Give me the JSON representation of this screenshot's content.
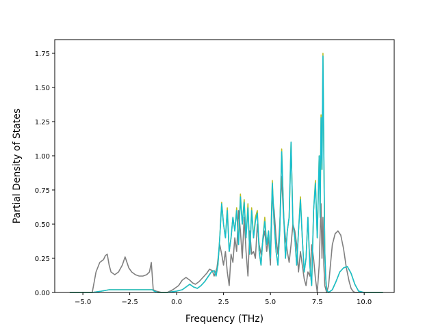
{
  "chart_data": {
    "type": "line",
    "title": "",
    "xlabel": "Frequency (THz)",
    "ylabel": "Partial Density of States",
    "xlim": [
      -6.5,
      11.6
    ],
    "ylim": [
      0,
      1.85
    ],
    "xticks": [
      -5.0,
      -2.5,
      0.0,
      2.5,
      5.0,
      7.5,
      10.0
    ],
    "xtick_labels": [
      "−5.0",
      "−2.5",
      "0.0",
      "2.5",
      "5.0",
      "7.5",
      "10.0"
    ],
    "yticks": [
      0.0,
      0.25,
      0.5,
      0.75,
      1.0,
      1.25,
      1.5,
      1.75
    ],
    "ytick_labels": [
      "0.00",
      "0.25",
      "0.50",
      "0.75",
      "1.00",
      "1.25",
      "1.50",
      "1.75"
    ],
    "grid": false,
    "legend": "none",
    "series": [
      {
        "color": "#7f7f7f",
        "x": [
          -5.7,
          -4.5,
          -4.3,
          -4.1,
          -3.9,
          -3.8,
          -3.7,
          -3.6,
          -3.5,
          -3.3,
          -3.1,
          -2.9,
          -2.75,
          -2.65,
          -2.55,
          -2.4,
          -2.2,
          -2.0,
          -1.8,
          -1.6,
          -1.45,
          -1.35,
          -1.25,
          -1.1,
          -0.8,
          -0.5,
          -0.2,
          0.1,
          0.3,
          0.5,
          0.7,
          0.85,
          1.0,
          1.2,
          1.4,
          1.6,
          1.75,
          1.9,
          2.0,
          2.15,
          2.3,
          2.4,
          2.5,
          2.6,
          2.7,
          2.8,
          2.9,
          3.0,
          3.1,
          3.2,
          3.3,
          3.4,
          3.5,
          3.6,
          3.7,
          3.8,
          3.9,
          4.0,
          4.1,
          4.2,
          4.3,
          4.4,
          4.5,
          4.6,
          4.7,
          4.8,
          4.9,
          5.0,
          5.1,
          5.2,
          5.3,
          5.4,
          5.5,
          5.6,
          5.7,
          5.8,
          5.9,
          6.0,
          6.1,
          6.2,
          6.3,
          6.4,
          6.5,
          6.6,
          6.7,
          6.8,
          6.9,
          7.0,
          7.1,
          7.2,
          7.3,
          7.4,
          7.5,
          7.6,
          7.7,
          7.75,
          7.8,
          7.85,
          7.9,
          8.0,
          8.1,
          8.2,
          8.3,
          8.45,
          8.6,
          8.75,
          8.9,
          9.05,
          9.2,
          9.3,
          9.4,
          9.5,
          9.6,
          9.75,
          10.0,
          11.0
        ],
        "y": [
          0.0,
          0.0,
          0.15,
          0.22,
          0.24,
          0.27,
          0.28,
          0.2,
          0.15,
          0.13,
          0.15,
          0.2,
          0.26,
          0.22,
          0.18,
          0.15,
          0.13,
          0.12,
          0.12,
          0.13,
          0.15,
          0.22,
          0.02,
          0.01,
          0.0,
          0.0,
          0.02,
          0.05,
          0.09,
          0.11,
          0.09,
          0.07,
          0.06,
          0.08,
          0.11,
          0.14,
          0.17,
          0.16,
          0.12,
          0.18,
          0.35,
          0.28,
          0.2,
          0.3,
          0.15,
          0.05,
          0.28,
          0.22,
          0.4,
          0.3,
          0.6,
          0.45,
          0.25,
          0.55,
          0.3,
          0.12,
          0.45,
          0.28,
          0.3,
          0.25,
          0.5,
          0.35,
          0.28,
          0.38,
          0.45,
          0.3,
          0.4,
          0.2,
          0.7,
          0.6,
          0.4,
          0.28,
          0.5,
          0.85,
          0.55,
          0.4,
          0.3,
          0.22,
          0.35,
          0.5,
          0.45,
          0.35,
          0.15,
          0.3,
          0.2,
          0.1,
          0.05,
          0.15,
          0.12,
          0.35,
          0.25,
          0.1,
          0.0,
          0.2,
          0.65,
          0.25,
          0.55,
          0.2,
          0.05,
          0.0,
          0.05,
          0.2,
          0.35,
          0.43,
          0.45,
          0.42,
          0.32,
          0.18,
          0.08,
          0.03,
          0.01,
          0.0,
          0.0,
          0.0,
          0.0,
          0.0
        ]
      },
      {
        "color": "#bcbd22",
        "x": [
          -5.7,
          -4.5,
          -4.0,
          -3.6,
          -3.2,
          -2.8,
          -2.4,
          -2.0,
          -1.6,
          -1.3,
          -1.2,
          -1.0,
          -0.5,
          0.0,
          0.3,
          0.5,
          0.7,
          0.9,
          1.1,
          1.3,
          1.5,
          1.7,
          1.85,
          2.0,
          2.1,
          2.2,
          2.3,
          2.4,
          2.5,
          2.6,
          2.7,
          2.8,
          2.9,
          3.0,
          3.1,
          3.2,
          3.3,
          3.4,
          3.5,
          3.6,
          3.7,
          3.8,
          3.9,
          4.0,
          4.1,
          4.2,
          4.3,
          4.4,
          4.5,
          4.6,
          4.7,
          4.8,
          4.9,
          5.0,
          5.1,
          5.2,
          5.3,
          5.4,
          5.5,
          5.6,
          5.7,
          5.8,
          5.9,
          6.0,
          6.1,
          6.2,
          6.3,
          6.4,
          6.5,
          6.6,
          6.7,
          6.8,
          6.9,
          7.0,
          7.1,
          7.2,
          7.3,
          7.4,
          7.5,
          7.6,
          7.65,
          7.7,
          7.75,
          7.8,
          7.85,
          7.9,
          7.95,
          8.0,
          8.1,
          8.3,
          8.5,
          8.7,
          8.9,
          9.1,
          9.3,
          9.5,
          9.7,
          10.0,
          11.0
        ],
        "y": [
          0.0,
          0.0,
          0.01,
          0.02,
          0.02,
          0.02,
          0.02,
          0.02,
          0.02,
          0.02,
          0.01,
          0.0,
          0.0,
          0.01,
          0.02,
          0.04,
          0.06,
          0.04,
          0.03,
          0.05,
          0.08,
          0.12,
          0.15,
          0.16,
          0.12,
          0.2,
          0.4,
          0.66,
          0.5,
          0.4,
          0.62,
          0.3,
          0.4,
          0.55,
          0.45,
          0.62,
          0.35,
          0.72,
          0.5,
          0.68,
          0.4,
          0.65,
          0.28,
          0.62,
          0.4,
          0.55,
          0.6,
          0.3,
          0.2,
          0.4,
          0.55,
          0.35,
          0.45,
          0.25,
          0.82,
          0.5,
          0.3,
          0.2,
          0.45,
          1.05,
          0.6,
          0.25,
          0.45,
          0.55,
          1.1,
          0.5,
          0.4,
          0.2,
          0.45,
          0.7,
          0.4,
          0.15,
          0.25,
          0.55,
          0.2,
          0.05,
          0.6,
          0.82,
          0.4,
          1.0,
          0.55,
          1.3,
          0.9,
          1.75,
          1.0,
          0.3,
          0.1,
          0.02,
          0.0,
          0.02,
          0.08,
          0.15,
          0.18,
          0.19,
          0.14,
          0.06,
          0.01,
          0.0,
          0.0
        ]
      },
      {
        "color": "#17becf",
        "x": [
          -5.7,
          -4.5,
          -4.0,
          -3.6,
          -3.2,
          -2.8,
          -2.4,
          -2.0,
          -1.6,
          -1.3,
          -1.2,
          -1.0,
          -0.5,
          0.0,
          0.3,
          0.5,
          0.7,
          0.9,
          1.1,
          1.3,
          1.5,
          1.7,
          1.85,
          2.0,
          2.1,
          2.2,
          2.3,
          2.4,
          2.5,
          2.6,
          2.7,
          2.8,
          2.9,
          3.0,
          3.1,
          3.2,
          3.3,
          3.4,
          3.5,
          3.6,
          3.7,
          3.8,
          3.9,
          4.0,
          4.1,
          4.2,
          4.3,
          4.4,
          4.5,
          4.6,
          4.7,
          4.8,
          4.9,
          5.0,
          5.1,
          5.2,
          5.3,
          5.4,
          5.5,
          5.6,
          5.7,
          5.8,
          5.9,
          6.0,
          6.1,
          6.2,
          6.3,
          6.4,
          6.5,
          6.6,
          6.7,
          6.8,
          6.9,
          7.0,
          7.1,
          7.2,
          7.3,
          7.4,
          7.5,
          7.6,
          7.65,
          7.7,
          7.75,
          7.8,
          7.85,
          7.9,
          7.95,
          8.0,
          8.1,
          8.3,
          8.5,
          8.7,
          8.9,
          9.1,
          9.3,
          9.5,
          9.7,
          10.0,
          11.0
        ],
        "y": [
          0.0,
          0.0,
          0.01,
          0.02,
          0.02,
          0.02,
          0.02,
          0.02,
          0.02,
          0.02,
          0.01,
          0.0,
          0.0,
          0.01,
          0.02,
          0.04,
          0.06,
          0.04,
          0.03,
          0.05,
          0.08,
          0.12,
          0.15,
          0.16,
          0.12,
          0.2,
          0.4,
          0.65,
          0.5,
          0.4,
          0.6,
          0.3,
          0.4,
          0.55,
          0.45,
          0.6,
          0.35,
          0.7,
          0.5,
          0.66,
          0.4,
          0.62,
          0.28,
          0.6,
          0.4,
          0.52,
          0.58,
          0.3,
          0.2,
          0.4,
          0.52,
          0.35,
          0.45,
          0.25,
          0.8,
          0.5,
          0.3,
          0.2,
          0.45,
          1.03,
          0.6,
          0.25,
          0.45,
          0.55,
          1.1,
          0.5,
          0.4,
          0.2,
          0.45,
          0.68,
          0.4,
          0.15,
          0.25,
          0.55,
          0.2,
          0.05,
          0.6,
          0.8,
          0.4,
          1.0,
          0.55,
          1.28,
          0.9,
          1.73,
          1.0,
          0.3,
          0.1,
          0.02,
          0.0,
          0.02,
          0.08,
          0.15,
          0.18,
          0.19,
          0.14,
          0.06,
          0.01,
          0.0,
          0.0
        ]
      }
    ]
  }
}
